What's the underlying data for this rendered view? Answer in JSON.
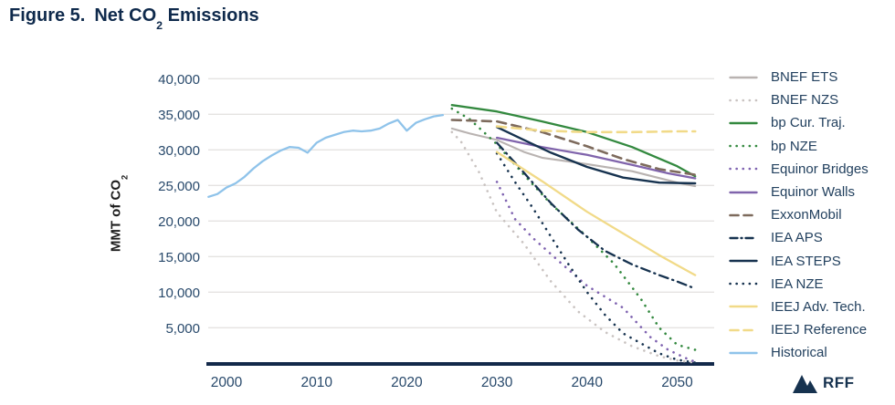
{
  "title": {
    "prefix": "Figure 5.",
    "main_pre": "Net CO",
    "main_sub": "2",
    "main_post": " Emissions"
  },
  "y_axis": {
    "label_pre": "MMT of CO",
    "label_sub": "2",
    "ticks": [
      40000,
      35000,
      30000,
      25000,
      20000,
      15000,
      10000,
      5000
    ]
  },
  "x_axis": {
    "ticks": [
      2000,
      2010,
      2020,
      2030,
      2040,
      2050
    ]
  },
  "logo": {
    "text": "RFF"
  },
  "colors": {
    "axis": "#13294a",
    "grid": "#e5e3e1",
    "tick_text": "#28496b",
    "legend_text": "#23415f",
    "title_text": "#0f2a4c"
  },
  "chart_data": {
    "type": "line",
    "title": "Figure 5. Net CO2 Emissions",
    "xlabel": "",
    "ylabel": "MMT of CO2",
    "xlim": [
      1997,
      2053.5
    ],
    "ylim": [
      0,
      41500
    ],
    "grid": true,
    "legend_position": "right",
    "x_ticks": [
      2000,
      2010,
      2020,
      2030,
      2040,
      2050
    ],
    "y_ticks": [
      5000,
      10000,
      15000,
      20000,
      25000,
      30000,
      35000,
      40000
    ],
    "series": [
      {
        "name": "BNEF ETS",
        "color": "#b9b3b1",
        "line_style": "solid",
        "width": 2.1,
        "points": [
          [
            2025,
            33000
          ],
          [
            2027,
            32300
          ],
          [
            2030,
            31400
          ],
          [
            2033,
            29700
          ],
          [
            2035,
            28900
          ],
          [
            2040,
            28000
          ],
          [
            2045,
            27000
          ],
          [
            2050,
            25400
          ],
          [
            2052,
            24900
          ]
        ]
      },
      {
        "name": "BNEF NZS",
        "color": "#c9c3c1",
        "line_style": "dot",
        "width": 2.6,
        "points": [
          [
            2025,
            32500
          ],
          [
            2026,
            31200
          ],
          [
            2028,
            26900
          ],
          [
            2030,
            21200
          ],
          [
            2033,
            16800
          ],
          [
            2036,
            11500
          ],
          [
            2039,
            7300
          ],
          [
            2042,
            4400
          ],
          [
            2045,
            2400
          ],
          [
            2048,
            1000
          ],
          [
            2050,
            400
          ],
          [
            2052,
            100
          ]
        ]
      },
      {
        "name": "bp Cur. Traj.",
        "color": "#33893f",
        "line_style": "solid",
        "width": 2.3,
        "points": [
          [
            2025,
            36300
          ],
          [
            2030,
            35400
          ],
          [
            2035,
            34000
          ],
          [
            2040,
            32500
          ],
          [
            2045,
            30400
          ],
          [
            2050,
            27700
          ],
          [
            2052,
            26300
          ]
        ]
      },
      {
        "name": "bp NZE",
        "color": "#33893f",
        "line_style": "dot",
        "width": 2.6,
        "points": [
          [
            2025,
            35800
          ],
          [
            2027,
            34300
          ],
          [
            2030,
            30800
          ],
          [
            2033,
            26500
          ],
          [
            2036,
            22400
          ],
          [
            2040,
            17800
          ],
          [
            2043,
            14000
          ],
          [
            2046,
            9000
          ],
          [
            2048,
            5000
          ],
          [
            2050,
            2600
          ],
          [
            2052,
            1900
          ]
        ]
      },
      {
        "name": "Equinor Bridges",
        "color": "#7e62b0",
        "line_style": "dot",
        "width": 2.6,
        "points": [
          [
            2030,
            25500
          ],
          [
            2032,
            20300
          ],
          [
            2034,
            17600
          ],
          [
            2037,
            14200
          ],
          [
            2040,
            10900
          ],
          [
            2044,
            7800
          ],
          [
            2047,
            3700
          ],
          [
            2049,
            1900
          ],
          [
            2051,
            700
          ],
          [
            2052,
            200
          ]
        ]
      },
      {
        "name": "Equinor Walls",
        "color": "#8064ac",
        "line_style": "solid",
        "width": 2.3,
        "points": [
          [
            2030,
            31700
          ],
          [
            2035,
            30400
          ],
          [
            2040,
            29300
          ],
          [
            2045,
            27900
          ],
          [
            2049,
            26700
          ],
          [
            2052,
            26000
          ]
        ]
      },
      {
        "name": "ExxonMobil",
        "color": "#7d6a5c",
        "line_style": "dash",
        "width": 2.6,
        "points": [
          [
            2025,
            34200
          ],
          [
            2030,
            34000
          ],
          [
            2035,
            32500
          ],
          [
            2040,
            30500
          ],
          [
            2044,
            28700
          ],
          [
            2048,
            27300
          ],
          [
            2052,
            26500
          ]
        ]
      },
      {
        "name": "IEA APS",
        "color": "#16324f",
        "line_style": "dashdot",
        "width": 2.3,
        "points": [
          [
            2030,
            31000
          ],
          [
            2033,
            26800
          ],
          [
            2036,
            22500
          ],
          [
            2039,
            18800
          ],
          [
            2042,
            15800
          ],
          [
            2045,
            13900
          ],
          [
            2048,
            12400
          ],
          [
            2050,
            11500
          ],
          [
            2052,
            10500
          ]
        ]
      },
      {
        "name": "IEA STEPS",
        "color": "#16324f",
        "line_style": "solid",
        "width": 2.4,
        "points": [
          [
            2030,
            33200
          ],
          [
            2033,
            31400
          ],
          [
            2036,
            29600
          ],
          [
            2040,
            27600
          ],
          [
            2044,
            26100
          ],
          [
            2048,
            25400
          ],
          [
            2052,
            25300
          ]
        ]
      },
      {
        "name": "IEA NZE",
        "color": "#16324f",
        "line_style": "dot",
        "width": 2.6,
        "points": [
          [
            2030,
            29500
          ],
          [
            2032,
            25500
          ],
          [
            2034,
            21800
          ],
          [
            2036,
            17800
          ],
          [
            2038,
            13800
          ],
          [
            2040,
            10000
          ],
          [
            2042,
            6800
          ],
          [
            2044,
            4200
          ],
          [
            2046,
            2800
          ],
          [
            2048,
            1400
          ],
          [
            2050,
            500
          ],
          [
            2052,
            100
          ]
        ]
      },
      {
        "name": "IEEJ Adv. Tech.",
        "color": "#f1da88",
        "line_style": "solid",
        "width": 2.3,
        "points": [
          [
            2030,
            29700
          ],
          [
            2035,
            25600
          ],
          [
            2040,
            21300
          ],
          [
            2045,
            17500
          ],
          [
            2048,
            15200
          ],
          [
            2050,
            13800
          ],
          [
            2052,
            12400
          ]
        ]
      },
      {
        "name": "IEEJ Reference",
        "color": "#f1da88",
        "line_style": "dash",
        "width": 2.6,
        "points": [
          [
            2030,
            33300
          ],
          [
            2035,
            32700
          ],
          [
            2040,
            32500
          ],
          [
            2045,
            32500
          ],
          [
            2050,
            32600
          ],
          [
            2052,
            32600
          ]
        ]
      },
      {
        "name": "Historical",
        "color": "#8fc3ea",
        "line_style": "solid",
        "width": 2.3,
        "points": [
          [
            1998,
            23400
          ],
          [
            1999,
            23800
          ],
          [
            2000,
            24700
          ],
          [
            2001,
            25300
          ],
          [
            2002,
            26200
          ],
          [
            2003,
            27400
          ],
          [
            2004,
            28400
          ],
          [
            2005,
            29200
          ],
          [
            2006,
            29900
          ],
          [
            2007,
            30400
          ],
          [
            2008,
            30300
          ],
          [
            2009,
            29600
          ],
          [
            2010,
            31000
          ],
          [
            2011,
            31700
          ],
          [
            2012,
            32100
          ],
          [
            2013,
            32500
          ],
          [
            2014,
            32700
          ],
          [
            2015,
            32600
          ],
          [
            2016,
            32700
          ],
          [
            2017,
            33000
          ],
          [
            2018,
            33700
          ],
          [
            2019,
            34200
          ],
          [
            2020,
            32700
          ],
          [
            2021,
            33800
          ],
          [
            2022,
            34300
          ],
          [
            2023,
            34700
          ],
          [
            2024,
            34900
          ]
        ]
      }
    ]
  }
}
